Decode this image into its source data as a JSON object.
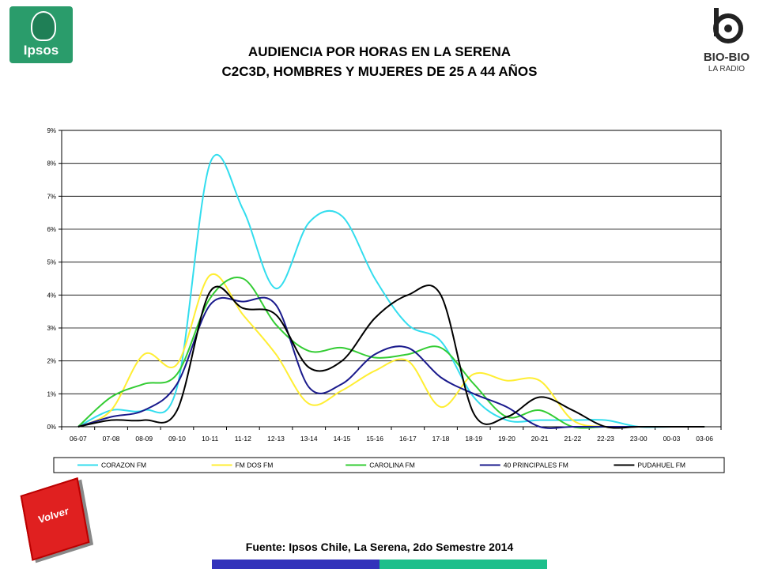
{
  "header": {
    "title_line1": "AUDIENCIA POR HORAS EN LA SERENA",
    "title_line2": "C2C3D, HOMBRES Y MUJERES DE 25 A 44 AÑOS"
  },
  "logos": {
    "left_text": "Ipsos",
    "right_text_1": "BIO-BIO",
    "right_text_2": "LA RADIO"
  },
  "footer": {
    "source": "Fuente: Ipsos Chile, La Serena, 2do Semestre 2014",
    "back_button": "Volver"
  },
  "colors": {
    "corazon": "#33ddee",
    "fmdos": "#ffee33",
    "carolina": "#33cc33",
    "principales": "#1a1a8c",
    "pudahuel": "#000000",
    "footer_bar_left": "#3333bb",
    "footer_bar_right": "#1dbf8b"
  },
  "chart_data": {
    "type": "line",
    "title": "",
    "xlabel": "",
    "ylabel": "",
    "ylim": [
      0,
      9
    ],
    "yticks": [
      "0%",
      "1%",
      "2%",
      "3%",
      "4%",
      "5%",
      "6%",
      "7%",
      "8%",
      "9%"
    ],
    "grid": true,
    "legend_position": "bottom",
    "categories": [
      "06-07",
      "07-08",
      "08-09",
      "09-10",
      "10-11",
      "11-12",
      "12-13",
      "13-14",
      "14-15",
      "15-16",
      "16-17",
      "17-18",
      "18-19",
      "19-20",
      "20-21",
      "21-22",
      "22-23",
      "23-00",
      "00-03",
      "03-06"
    ],
    "series": [
      {
        "name": "CORAZON FM",
        "color": "#33ddee",
        "values": [
          0.0,
          0.5,
          0.5,
          1.2,
          8.0,
          6.6,
          4.2,
          6.2,
          6.4,
          4.5,
          3.1,
          2.6,
          0.9,
          0.2,
          0.2,
          0.2,
          0.2,
          0.0,
          0.0,
          0.0
        ]
      },
      {
        "name": "FM DOS FM",
        "color": "#ffee33",
        "values": [
          0.0,
          0.5,
          2.2,
          1.9,
          4.6,
          3.4,
          2.2,
          0.7,
          1.1,
          1.7,
          2.0,
          0.6,
          1.6,
          1.4,
          1.4,
          0.2,
          0.0,
          0.0,
          0.0,
          0.0
        ]
      },
      {
        "name": "CAROLINA FM",
        "color": "#33cc33",
        "values": [
          0.0,
          0.9,
          1.3,
          1.6,
          3.9,
          4.5,
          3.1,
          2.3,
          2.4,
          2.1,
          2.2,
          2.4,
          1.3,
          0.3,
          0.5,
          0.0,
          0.0,
          0.0,
          0.0,
          0.0
        ]
      },
      {
        "name": "40 PRINCIPALES FM",
        "color": "#1a1a8c",
        "values": [
          0.0,
          0.3,
          0.5,
          1.3,
          3.7,
          3.8,
          3.7,
          1.2,
          1.3,
          2.2,
          2.4,
          1.5,
          1.0,
          0.6,
          0.0,
          0.0,
          0.0,
          0.0,
          0.0,
          0.0
        ]
      },
      {
        "name": "PUDAHUEL FM",
        "color": "#000000",
        "values": [
          0.0,
          0.2,
          0.2,
          0.5,
          4.1,
          3.6,
          3.4,
          1.8,
          2.0,
          3.3,
          4.0,
          4.0,
          0.4,
          0.3,
          0.9,
          0.5,
          0.0,
          0.0,
          0.0,
          0.0
        ]
      }
    ]
  }
}
